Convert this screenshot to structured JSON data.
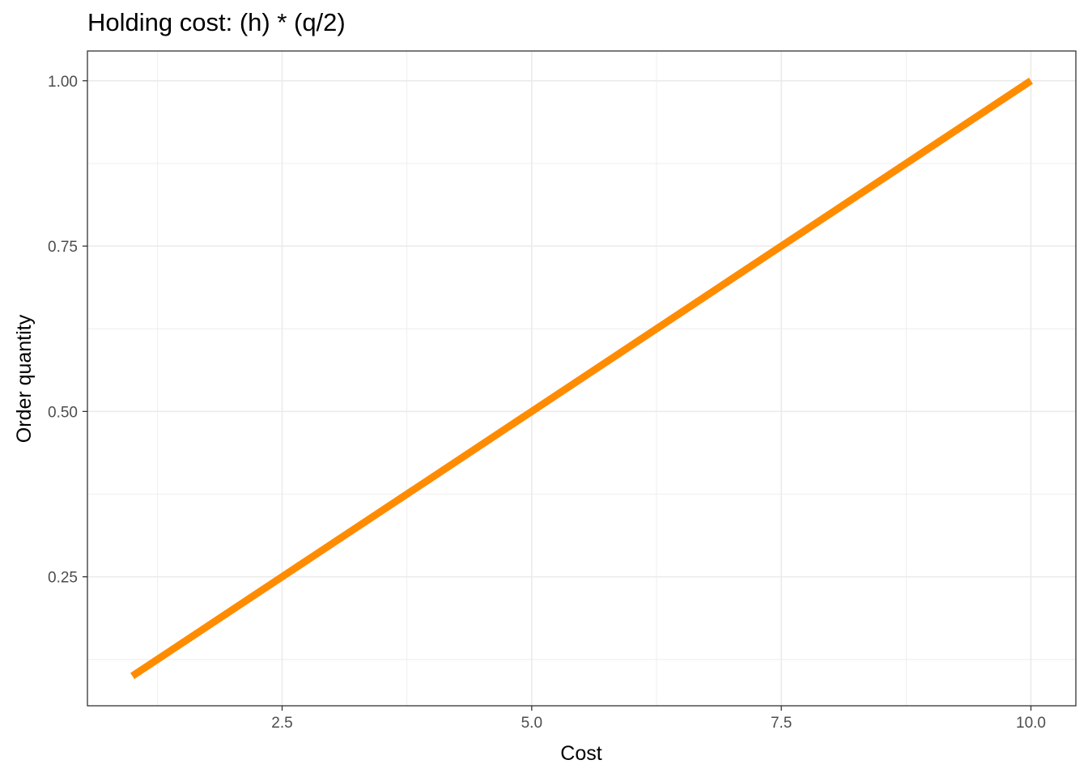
{
  "chart_data": {
    "type": "line",
    "title": "Holding cost: (h) * (q/2)",
    "xlabel": "Cost",
    "ylabel": "Order quantity",
    "xlim": [
      0.55,
      10.45
    ],
    "ylim": [
      0.055,
      1.045
    ],
    "x_ticks": [
      2.5,
      5.0,
      7.5,
      10.0
    ],
    "x_tick_labels": [
      "2.5",
      "5.0",
      "7.5",
      "10.0"
    ],
    "y_ticks": [
      0.25,
      0.5,
      0.75,
      1.0
    ],
    "y_tick_labels": [
      "0.25",
      "0.50",
      "0.75",
      "1.00"
    ],
    "grid": true,
    "series": [
      {
        "color": "#FF8C00",
        "x": [
          1,
          2,
          3,
          4,
          5,
          6,
          7,
          8,
          9,
          10
        ],
        "y": [
          0.1,
          0.2,
          0.3,
          0.4,
          0.5,
          0.6,
          0.7,
          0.8,
          0.9,
          1.0
        ]
      }
    ]
  }
}
